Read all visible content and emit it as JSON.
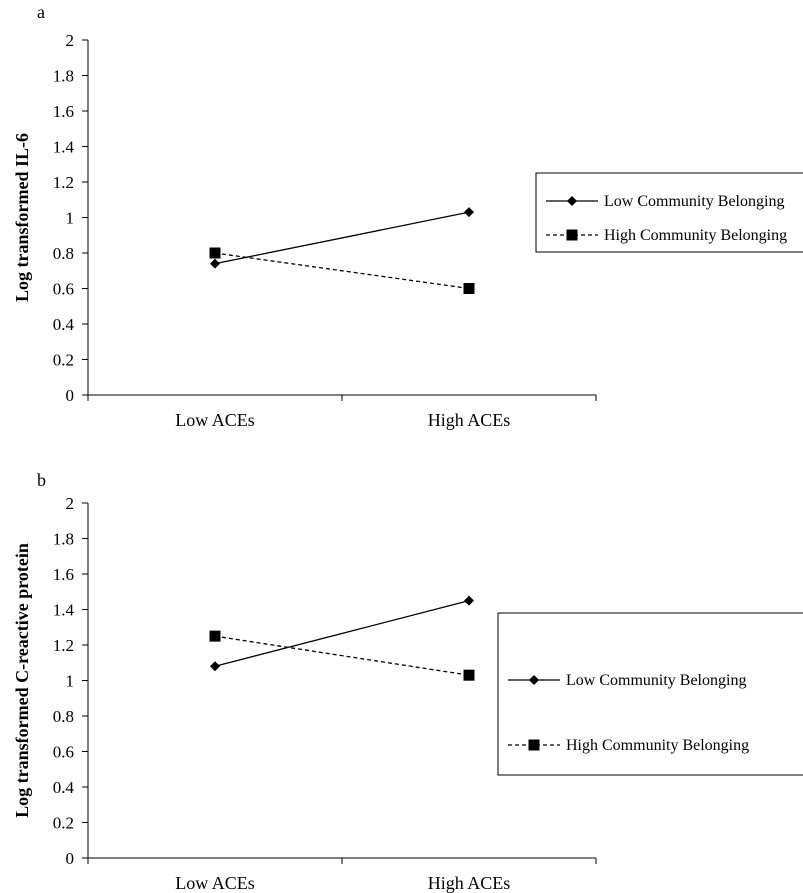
{
  "chart_data": [
    {
      "type": "line",
      "panel_label": "a",
      "categories": [
        "Low ACEs",
        "High ACEs"
      ],
      "ylabel": "Log transformed IL-6",
      "xlabel": "",
      "ylim": [
        0,
        2
      ],
      "yticks": [
        "0",
        "0.2",
        "0.4",
        "0.6",
        "0.8",
        "1",
        "1.2",
        "1.4",
        "1.6",
        "1.8",
        "2"
      ],
      "grid": false,
      "legend_position": "right",
      "series": [
        {
          "name": "Low Community Belonging",
          "values": [
            0.74,
            1.03
          ],
          "marker": "diamond",
          "style": "solid"
        },
        {
          "name": "High Community Belonging",
          "values": [
            0.8,
            0.6
          ],
          "marker": "square",
          "style": "dashed"
        }
      ]
    },
    {
      "type": "line",
      "panel_label": "b",
      "categories": [
        "Low ACEs",
        "High ACEs"
      ],
      "ylabel": "Log transformed C-reactive protein",
      "xlabel": "",
      "ylim": [
        0,
        2
      ],
      "yticks": [
        "0",
        "0.2",
        "0.4",
        "0.6",
        "0.8",
        "1",
        "1.2",
        "1.4",
        "1.6",
        "1.8",
        "2"
      ],
      "grid": false,
      "legend_position": "right",
      "series": [
        {
          "name": "Low Community Belonging",
          "values": [
            1.08,
            1.45
          ],
          "marker": "diamond",
          "style": "solid"
        },
        {
          "name": "High Community Belonging",
          "values": [
            1.25,
            1.03
          ],
          "marker": "square",
          "style": "dashed"
        }
      ]
    }
  ]
}
